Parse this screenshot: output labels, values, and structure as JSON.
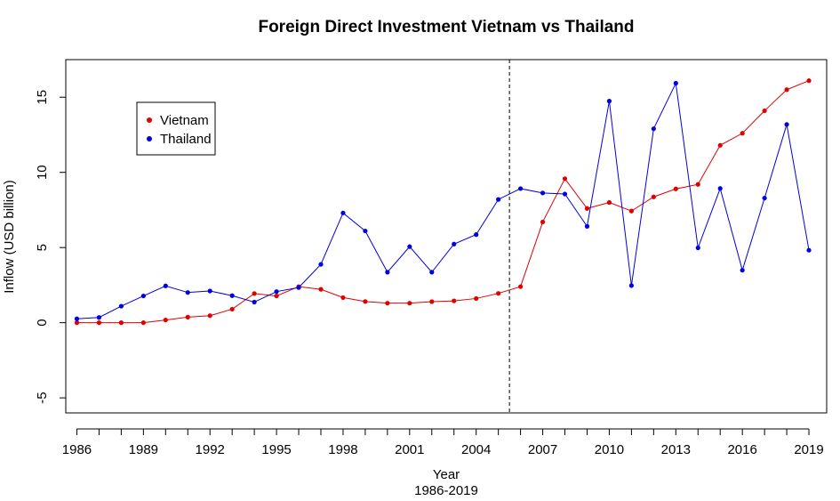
{
  "chart_data": {
    "type": "line",
    "title": "Foreign Direct Investment Vietnam vs Thailand",
    "xlabel": "Year",
    "xlabel_sub": "1986-2019",
    "ylabel": "Inflow (USD billion)",
    "xlim": [
      1985.5,
      2019.8
    ],
    "ylim": [
      -6,
      17.5
    ],
    "x_ticks": [
      1986,
      1989,
      1992,
      1995,
      1998,
      2001,
      2004,
      2007,
      2010,
      2013,
      2016,
      2019
    ],
    "x_tick_labels": [
      "1986",
      "1989",
      "1992",
      "1995",
      "1998",
      "2001",
      "2004",
      "2007",
      "2010",
      "2013",
      "2016",
      "2019"
    ],
    "x_minor_ticks": [
      1987,
      1988,
      1990,
      1991,
      1993,
      1994,
      1996,
      1997,
      1999,
      2000,
      2002,
      2003,
      2005,
      2006,
      2008,
      2009,
      2011,
      2012,
      2014,
      2015,
      2017,
      2018
    ],
    "y_ticks": [
      -5,
      0,
      5,
      10,
      15
    ],
    "y_tick_labels": [
      "-5",
      "0",
      "5",
      "10",
      "15"
    ],
    "vline_x": 2005.5,
    "legend_position": "top-left",
    "grid": false,
    "x": [
      1986,
      1987,
      1988,
      1989,
      1990,
      1991,
      1992,
      1993,
      1994,
      1995,
      1996,
      1997,
      1998,
      1999,
      2000,
      2001,
      2002,
      2003,
      2004,
      2005,
      2006,
      2007,
      2008,
      2009,
      2010,
      2011,
      2012,
      2013,
      2014,
      2015,
      2016,
      2017,
      2018,
      2019
    ],
    "series": [
      {
        "name": "Vietnam",
        "color": "#e00000",
        "values": [
          0.0,
          0.0,
          0.0,
          0.0,
          0.18,
          0.37,
          0.47,
          0.9,
          1.94,
          1.78,
          2.4,
          2.22,
          1.67,
          1.41,
          1.3,
          1.3,
          1.4,
          1.45,
          1.61,
          1.95,
          2.4,
          6.7,
          9.58,
          7.6,
          8.0,
          7.43,
          8.37,
          8.9,
          9.2,
          11.8,
          12.6,
          14.1,
          15.5,
          16.1
        ]
      },
      {
        "name": "Thailand",
        "color": "#0000e0",
        "values": [
          0.26,
          0.35,
          1.1,
          1.78,
          2.45,
          2.01,
          2.11,
          1.8,
          1.37,
          2.07,
          2.34,
          3.88,
          7.3,
          6.1,
          3.36,
          5.06,
          3.36,
          5.23,
          5.86,
          8.2,
          8.92,
          8.63,
          8.56,
          6.41,
          14.74,
          2.47,
          12.9,
          15.93,
          4.98,
          8.93,
          3.49,
          8.29,
          13.19,
          4.82
        ]
      }
    ]
  }
}
